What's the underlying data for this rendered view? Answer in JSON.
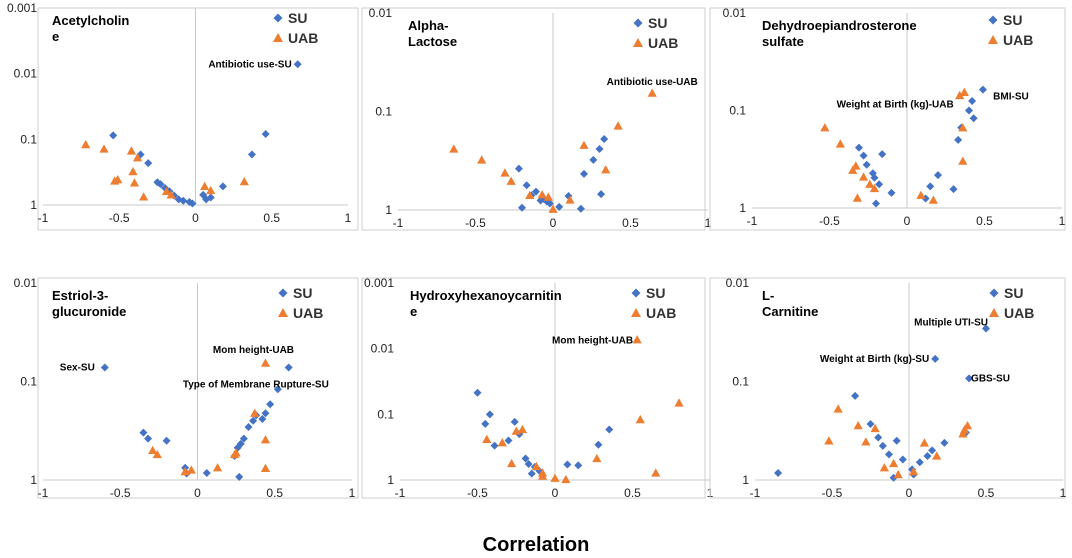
{
  "figure": {
    "xlabel": "Correlation"
  },
  "colors": {
    "SU": "#4472C4",
    "UAB": "#ED7D31"
  },
  "legend": {
    "su": "SU",
    "uab": "UAB"
  },
  "chart_data": [
    {
      "type": "scatter",
      "title_lines": [
        "Acetylcholin",
        "e"
      ],
      "xlim": [
        -1,
        1
      ],
      "xticks": [
        "-1",
        "-0.5",
        "0",
        "0.5",
        "1"
      ],
      "y_scale": "log10_reversed",
      "ylim": [
        1,
        0.001
      ],
      "yticks": [
        "0.001",
        "0.01",
        "0.1",
        "1"
      ],
      "series": [
        {
          "name": "SU",
          "points": [
            [
              -0.54,
              0.087
            ],
            [
              -0.36,
              0.17
            ],
            [
              -0.31,
              0.23
            ],
            [
              -0.25,
              0.45
            ],
            [
              -0.23,
              0.48
            ],
            [
              -0.2,
              0.55
            ],
            [
              -0.17,
              0.62
            ],
            [
              -0.14,
              0.72
            ],
            [
              -0.11,
              0.82
            ],
            [
              -0.08,
              0.86
            ],
            [
              -0.04,
              0.9
            ],
            [
              -0.02,
              0.95
            ],
            [
              0.05,
              0.7
            ],
            [
              0.07,
              0.82
            ],
            [
              0.1,
              0.77
            ],
            [
              0.18,
              0.52
            ],
            [
              0.37,
              0.17
            ],
            [
              0.46,
              0.083
            ],
            [
              0.67,
              0.0072
            ]
          ]
        },
        {
          "name": "UAB",
          "points": [
            [
              -0.72,
              0.12
            ],
            [
              -0.6,
              0.14
            ],
            [
              -0.53,
              0.43
            ],
            [
              -0.51,
              0.41
            ],
            [
              -0.42,
              0.15
            ],
            [
              -0.41,
              0.31
            ],
            [
              -0.4,
              0.46
            ],
            [
              -0.38,
              0.19
            ],
            [
              -0.34,
              0.75
            ],
            [
              -0.19,
              0.62
            ],
            [
              -0.16,
              0.7
            ],
            [
              0.06,
              0.52
            ],
            [
              0.1,
              0.6
            ],
            [
              0.32,
              0.44
            ]
          ]
        }
      ],
      "annotations": [
        {
          "text": "Antibiotic use-SU",
          "x": 0.67,
          "y": 0.0072,
          "series": "SU"
        }
      ]
    },
    {
      "type": "scatter",
      "title_lines": [
        "Alpha-",
        "Lactose"
      ],
      "xlim": [
        -1,
        1
      ],
      "xticks": [
        "-1",
        "-0.5",
        "0",
        "0.5",
        "1"
      ],
      "y_scale": "log10_reversed",
      "ylim": [
        1,
        0.01
      ],
      "yticks": [
        "0.01",
        "0.1",
        "1"
      ],
      "series": [
        {
          "name": "SU",
          "points": [
            [
              -0.22,
              0.38
            ],
            [
              -0.2,
              0.95
            ],
            [
              -0.17,
              0.56
            ],
            [
              -0.14,
              0.71
            ],
            [
              -0.11,
              0.65
            ],
            [
              -0.08,
              0.8
            ],
            [
              -0.06,
              0.77
            ],
            [
              -0.04,
              0.82
            ],
            [
              -0.02,
              0.86
            ],
            [
              0.04,
              0.93
            ],
            [
              0.1,
              0.72
            ],
            [
              0.18,
              0.97
            ],
            [
              0.2,
              0.43
            ],
            [
              0.26,
              0.31
            ],
            [
              0.3,
              0.24
            ],
            [
              0.31,
              0.69
            ],
            [
              0.33,
              0.19
            ]
          ]
        },
        {
          "name": "UAB",
          "points": [
            [
              -0.64,
              0.24
            ],
            [
              -0.46,
              0.31
            ],
            [
              -0.31,
              0.42
            ],
            [
              -0.27,
              0.51
            ],
            [
              -0.15,
              0.71
            ],
            [
              -0.07,
              0.7
            ],
            [
              -0.03,
              0.74
            ],
            [
              0.0,
              0.98
            ],
            [
              0.11,
              0.79
            ],
            [
              0.2,
              0.22
            ],
            [
              0.34,
              0.39
            ],
            [
              0.42,
              0.14
            ],
            [
              0.64,
              0.065
            ]
          ]
        }
      ],
      "annotations": [
        {
          "text": "Antibiotic use-UAB",
          "x": 0.64,
          "y": 0.065,
          "series": "UAB"
        }
      ]
    },
    {
      "type": "scatter",
      "title_lines": [
        "Dehydroepiandrosterone",
        "sulfate"
      ],
      "xlim": [
        -1,
        1
      ],
      "xticks": [
        "-1",
        "-0.5",
        "0",
        "0.5",
        "1"
      ],
      "y_scale": "log10_reversed",
      "ylim": [
        1,
        0.01
      ],
      "yticks": [
        "0.01",
        "0.1",
        "1"
      ],
      "series": [
        {
          "name": "SU",
          "points": [
            [
              -0.31,
              0.24
            ],
            [
              -0.28,
              0.29
            ],
            [
              -0.26,
              0.36
            ],
            [
              -0.22,
              0.44
            ],
            [
              -0.21,
              0.49
            ],
            [
              -0.18,
              0.57
            ],
            [
              -0.16,
              0.28
            ],
            [
              -0.2,
              0.9
            ],
            [
              -0.1,
              0.7
            ],
            [
              0.12,
              0.8
            ],
            [
              0.15,
              0.6
            ],
            [
              0.2,
              0.46
            ],
            [
              0.3,
              0.64
            ],
            [
              0.33,
              0.2
            ],
            [
              0.35,
              0.15
            ],
            [
              0.4,
              0.1
            ],
            [
              0.42,
              0.08
            ],
            [
              0.43,
              0.12
            ],
            [
              0.49,
              0.061
            ]
          ]
        },
        {
          "name": "UAB",
          "points": [
            [
              -0.53,
              0.15
            ],
            [
              -0.43,
              0.22
            ],
            [
              -0.35,
              0.41
            ],
            [
              -0.33,
              0.37
            ],
            [
              -0.32,
              0.79
            ],
            [
              -0.28,
              0.48
            ],
            [
              -0.24,
              0.57
            ],
            [
              -0.21,
              0.63
            ],
            [
              0.09,
              0.74
            ],
            [
              0.17,
              0.83
            ],
            [
              0.34,
              0.07
            ],
            [
              0.36,
              0.15
            ],
            [
              0.36,
              0.33
            ],
            [
              0.37,
              0.065
            ]
          ]
        }
      ],
      "annotations": [
        {
          "text": "Weight at Birth (kg)-UAB",
          "x": 0.34,
          "y": 0.07,
          "series": "UAB"
        },
        {
          "text": "BMI-SU",
          "x": 0.49,
          "y": 0.061,
          "series": "SU"
        }
      ]
    },
    {
      "type": "scatter",
      "title_lines": [
        "Estriol-3-",
        "glucuronide"
      ],
      "xlim": [
        -1,
        1
      ],
      "xticks": [
        "-1",
        "-0.5",
        "0",
        "0.5",
        "1"
      ],
      "y_scale": "log10_reversed",
      "ylim": [
        1,
        0.01
      ],
      "yticks": [
        "0.01",
        "0.1",
        "1"
      ],
      "series": [
        {
          "name": "SU",
          "points": [
            [
              -0.6,
              0.072
            ],
            [
              -0.35,
              0.33
            ],
            [
              -0.32,
              0.38
            ],
            [
              -0.2,
              0.4
            ],
            [
              -0.08,
              0.75
            ],
            [
              -0.07,
              0.86
            ],
            [
              0.06,
              0.85
            ],
            [
              0.24,
              0.57
            ],
            [
              0.26,
              0.47
            ],
            [
              0.28,
              0.43
            ],
            [
              0.27,
              0.93
            ],
            [
              0.3,
              0.38
            ],
            [
              0.33,
              0.29
            ],
            [
              0.36,
              0.25
            ],
            [
              0.38,
              0.22
            ],
            [
              0.42,
              0.24
            ],
            [
              0.44,
              0.21
            ],
            [
              0.47,
              0.17
            ],
            [
              0.52,
              0.12
            ],
            [
              0.59,
              0.072
            ]
          ]
        },
        {
          "name": "UAB",
          "points": [
            [
              -0.29,
              0.5
            ],
            [
              -0.26,
              0.55
            ],
            [
              -0.08,
              0.82
            ],
            [
              -0.04,
              0.79
            ],
            [
              0.13,
              0.75
            ],
            [
              0.24,
              0.55
            ],
            [
              0.25,
              0.53
            ],
            [
              0.37,
              0.21
            ],
            [
              0.44,
              0.065
            ],
            [
              0.44,
              0.39
            ],
            [
              0.44,
              0.76
            ]
          ]
        }
      ],
      "annotations": [
        {
          "text": "Sex-SU",
          "x": -0.6,
          "y": 0.072,
          "series": "SU"
        },
        {
          "text": "Mom height-UAB",
          "x": 0.44,
          "y": 0.065,
          "series": "UAB"
        },
        {
          "text": "Type of Membrane Rupture-SU",
          "x": 0.52,
          "y": 0.12,
          "series": "SU"
        }
      ]
    },
    {
      "type": "scatter",
      "title_lines": [
        "Hydroxyhexanoycarnitin",
        "e"
      ],
      "xlim": [
        -1,
        1
      ],
      "xticks": [
        "-1",
        "-0.5",
        "0",
        "0.5",
        "1"
      ],
      "y_scale": "log10_reversed",
      "ylim": [
        1,
        0.001
      ],
      "yticks": [
        "0.001",
        "0.01",
        "0.1",
        "1"
      ],
      "series": [
        {
          "name": "SU",
          "points": [
            [
              -0.5,
              0.047
            ],
            [
              -0.45,
              0.14
            ],
            [
              -0.42,
              0.1
            ],
            [
              -0.39,
              0.3
            ],
            [
              -0.3,
              0.25
            ],
            [
              -0.26,
              0.13
            ],
            [
              -0.23,
              0.2
            ],
            [
              -0.19,
              0.47
            ],
            [
              -0.17,
              0.57
            ],
            [
              -0.15,
              0.8
            ],
            [
              -0.13,
              0.63
            ],
            [
              -0.1,
              0.73
            ],
            [
              0.08,
              0.58
            ],
            [
              0.15,
              0.6
            ],
            [
              0.28,
              0.29
            ],
            [
              0.35,
              0.17
            ]
          ]
        },
        {
          "name": "UAB",
          "points": [
            [
              -0.44,
              0.24
            ],
            [
              -0.34,
              0.27
            ],
            [
              -0.28,
              0.56
            ],
            [
              -0.25,
              0.18
            ],
            [
              -0.21,
              0.17
            ],
            [
              -0.12,
              0.62
            ],
            [
              -0.08,
              0.78
            ],
            [
              -0.08,
              0.87
            ],
            [
              0.0,
              0.94
            ],
            [
              0.07,
              0.98
            ],
            [
              0.27,
              0.47
            ],
            [
              0.53,
              0.0073
            ],
            [
              0.55,
              0.12
            ],
            [
              0.65,
              0.78
            ],
            [
              0.8,
              0.067
            ]
          ]
        }
      ],
      "annotations": [
        {
          "text": "Mom height-UAB",
          "x": 0.53,
          "y": 0.0073,
          "series": "UAB"
        }
      ]
    },
    {
      "type": "scatter",
      "title_lines": [
        "L-",
        "Carnitine"
      ],
      "xlim": [
        -1,
        1
      ],
      "xticks": [
        "-1",
        "-0.5",
        "0",
        "0.5",
        "1"
      ],
      "y_scale": "log10_reversed",
      "ylim": [
        1,
        0.01
      ],
      "yticks": [
        "0.01",
        "0.1",
        "1"
      ],
      "series": [
        {
          "name": "SU",
          "points": [
            [
              -0.85,
              0.85
            ],
            [
              -0.35,
              0.14
            ],
            [
              -0.25,
              0.27
            ],
            [
              -0.2,
              0.37
            ],
            [
              -0.17,
              0.45
            ],
            [
              -0.13,
              0.55
            ],
            [
              -0.1,
              0.95
            ],
            [
              -0.08,
              0.4
            ],
            [
              -0.04,
              0.62
            ],
            [
              0.02,
              0.78
            ],
            [
              0.03,
              0.88
            ],
            [
              0.07,
              0.66
            ],
            [
              0.12,
              0.57
            ],
            [
              0.15,
              0.5
            ],
            [
              0.17,
              0.059
            ],
            [
              0.23,
              0.42
            ],
            [
              0.37,
              0.33
            ],
            [
              0.39,
              0.093
            ],
            [
              0.5,
              0.029
            ]
          ]
        },
        {
          "name": "UAB",
          "points": [
            [
              -0.52,
              0.4
            ],
            [
              -0.46,
              0.19
            ],
            [
              -0.33,
              0.28
            ],
            [
              -0.28,
              0.41
            ],
            [
              -0.22,
              0.3
            ],
            [
              -0.16,
              0.75
            ],
            [
              -0.1,
              0.68
            ],
            [
              -0.07,
              0.88
            ],
            [
              0.03,
              0.82
            ],
            [
              0.1,
              0.42
            ],
            [
              0.18,
              0.57
            ],
            [
              0.35,
              0.34
            ],
            [
              0.36,
              0.31
            ],
            [
              0.38,
              0.28
            ]
          ]
        }
      ],
      "annotations": [
        {
          "text": "Multiple UTI-SU",
          "x": 0.5,
          "y": 0.029,
          "series": "SU"
        },
        {
          "text": "Weight at Birth (kg)-SU",
          "x": 0.17,
          "y": 0.059,
          "series": "SU"
        },
        {
          "text": "GBS-SU",
          "x": 0.39,
          "y": 0.093,
          "series": "SU"
        }
      ]
    }
  ]
}
